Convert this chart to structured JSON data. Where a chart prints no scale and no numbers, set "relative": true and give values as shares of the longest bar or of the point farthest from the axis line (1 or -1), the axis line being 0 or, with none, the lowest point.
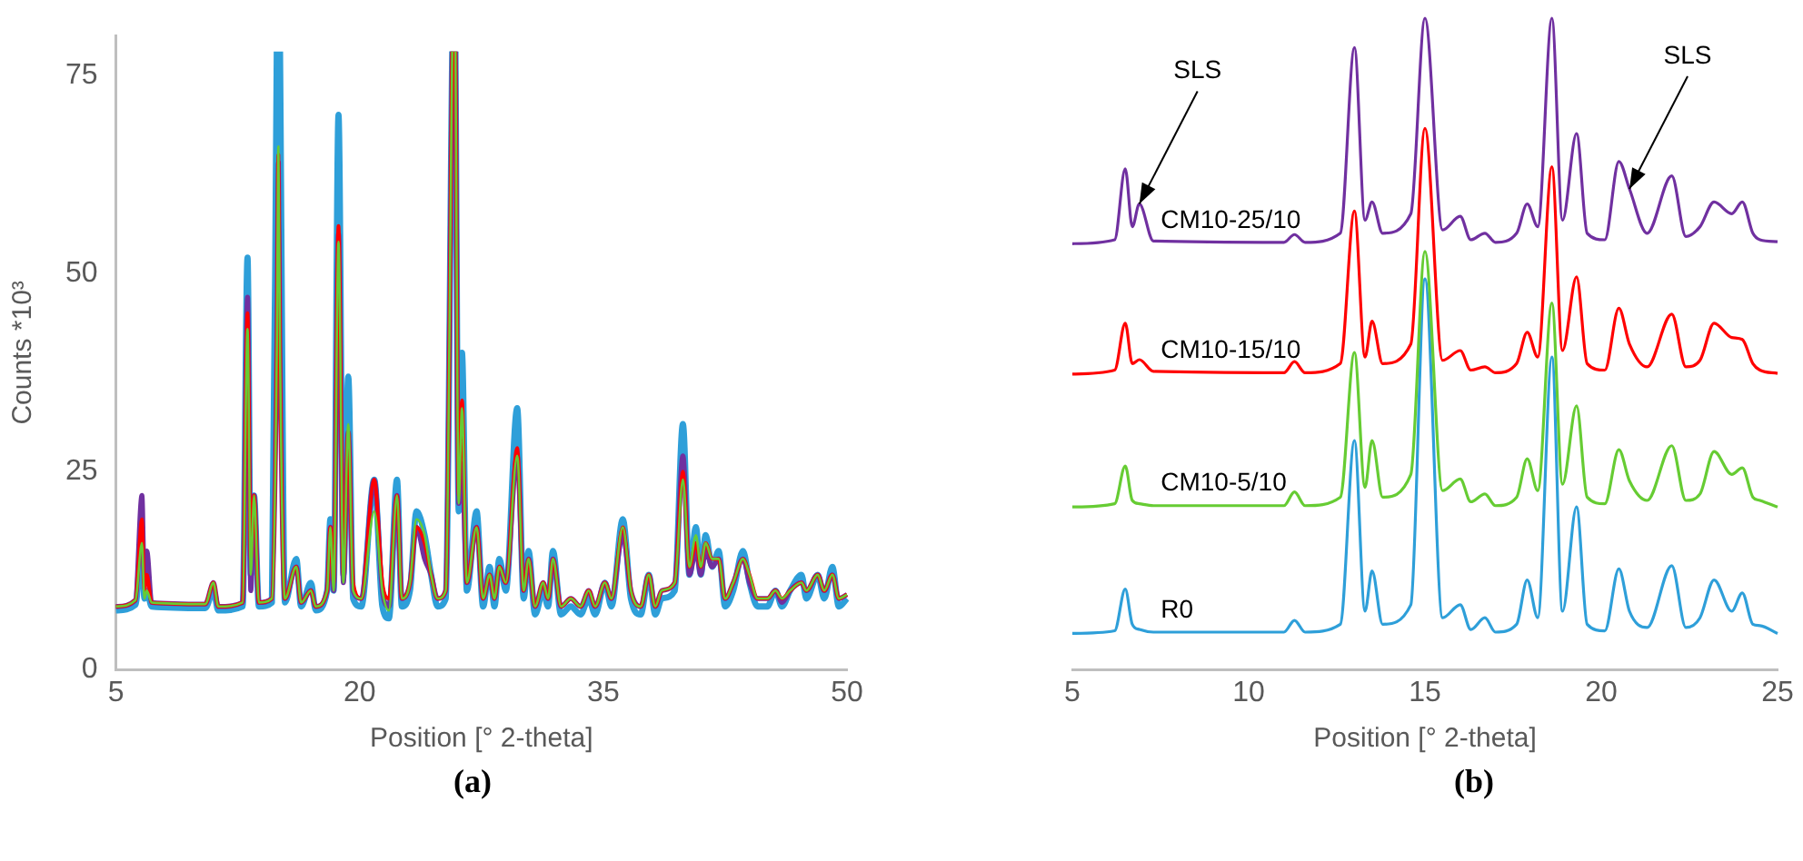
{
  "chart_data": [
    {
      "type": "line",
      "xlabel": "Position [° 2-theta]",
      "ylabel": "Counts *10³",
      "annotations": [
        "(a)"
      ],
      "xlim": [
        5,
        50
      ],
      "xticks": [
        5,
        20,
        35,
        50
      ],
      "ylim": [
        0,
        80
      ],
      "yticks": [
        0,
        25,
        50,
        75
      ],
      "grid": false,
      "legend": false,
      "marker": "none",
      "line_style": "solid",
      "x": [
        5,
        6.2,
        6.6,
        6.75,
        6.9,
        7.2,
        10.5,
        11,
        11.3,
        12.8,
        13.1,
        13.3,
        13.5,
        13.8,
        14.6,
        14.9,
        15,
        15.1,
        15.4,
        16.1,
        16.4,
        17,
        17.3,
        18,
        18.2,
        18.4,
        18.7,
        19,
        19.3,
        19.6,
        20.1,
        20.9,
        21.4,
        21.8,
        22.3,
        22.6,
        23.1,
        23.5,
        24,
        24.4,
        24.8,
        25.3,
        25.7,
        25.8,
        25.9,
        26.1,
        26.3,
        26.6,
        27.2,
        27.6,
        28,
        28.3,
        28.6,
        29,
        29.7,
        30.1,
        30.4,
        30.8,
        31.3,
        31.6,
        31.9,
        32.4,
        33,
        33.6,
        34.1,
        34.5,
        35.1,
        35.5,
        36.2,
        36.7,
        37.3,
        37.8,
        38.2,
        38.6,
        39.4,
        39.9,
        40.3,
        40.7,
        41,
        41.3,
        41.7,
        42.1,
        42.5,
        43,
        43.6,
        44,
        44.5,
        45.1,
        45.6,
        46,
        46.5,
        47.2,
        47.5,
        48.2,
        48.6,
        49.1,
        49.5,
        50
      ],
      "series": [
        {
          "color": "#2e9fd9",
          "values": [
            7.5,
            8.2,
            16,
            9,
            10,
            8,
            7.8,
            10,
            7.5,
            8,
            52,
            12,
            22,
            8,
            8.5,
            78,
            null,
            78,
            8.5,
            14,
            8,
            11,
            7.5,
            10,
            19,
            10,
            70,
            12,
            37,
            9,
            8,
            24,
            8,
            6.5,
            24,
            8,
            10,
            20,
            17,
            12,
            8,
            9,
            78,
            null,
            78,
            20,
            40,
            10,
            20,
            8,
            13,
            8,
            14,
            10,
            33,
            9,
            15,
            7,
            10,
            8,
            15,
            7,
            8,
            7,
            9,
            7,
            11,
            8,
            19,
            9,
            7,
            12,
            7,
            9,
            10,
            31,
            12,
            18,
            12,
            17,
            13,
            15,
            8,
            10,
            15,
            11,
            8,
            8,
            10,
            8,
            10,
            12,
            9,
            12,
            9,
            13,
            8,
            9
          ]
        },
        {
          "color": "#7030a0",
          "values": [
            8,
            8.8,
            22,
            11,
            15,
            8.5,
            8.3,
            11,
            8,
            8.5,
            47,
            10,
            22,
            8.5,
            9,
            40,
            64,
            40,
            9,
            13,
            8.5,
            10,
            8,
            10,
            18,
            10,
            55,
            11,
            30,
            10,
            9,
            24,
            10,
            8,
            22,
            9,
            11,
            18,
            14,
            12,
            9,
            10,
            78,
            null,
            78,
            21,
            26,
            11,
            18,
            9,
            12,
            9,
            13,
            11,
            27,
            10,
            14,
            8,
            11,
            9,
            14,
            8,
            9,
            8,
            10,
            8,
            11,
            9,
            17,
            10,
            8,
            12,
            8,
            10,
            11,
            27,
            12,
            15,
            12,
            15,
            13,
            14,
            9,
            11,
            14,
            11,
            9,
            9,
            10,
            8.5,
            10,
            11,
            10,
            12,
            10,
            12,
            9,
            9.5
          ]
        },
        {
          "color": "#ff0000",
          "values": [
            8,
            8.8,
            19,
            10,
            12,
            8.5,
            8.3,
            11,
            8,
            8.5,
            45,
            14,
            22,
            8.5,
            9,
            40,
            65,
            40,
            9,
            13,
            8.5,
            10,
            8,
            10,
            18,
            11,
            56,
            12,
            30,
            11,
            9,
            24,
            11,
            9,
            22,
            9,
            11,
            18,
            16,
            12,
            9,
            10,
            78,
            null,
            78,
            22,
            34,
            11,
            18,
            9,
            12,
            9,
            13,
            11,
            28,
            10,
            14,
            8,
            11,
            9,
            14,
            8,
            9,
            8,
            10,
            8,
            11,
            9,
            18,
            10,
            8,
            12,
            8,
            10,
            11,
            25,
            13,
            16,
            13,
            16,
            14,
            14,
            9,
            11,
            14,
            12,
            9,
            9,
            10,
            9,
            10,
            11,
            10,
            12,
            10,
            12,
            9,
            9.5
          ]
        },
        {
          "color": "#66cc33",
          "values": [
            8,
            8.8,
            16,
            9,
            10,
            8.5,
            8.3,
            11,
            8,
            8.5,
            43,
            12,
            22,
            8.5,
            9,
            40,
            66,
            40,
            9,
            13,
            8.5,
            10,
            8,
            10,
            18,
            10,
            54,
            11,
            31,
            10,
            9,
            20,
            10,
            7.5,
            22,
            9,
            11,
            19,
            17,
            12,
            9,
            10,
            78,
            null,
            78,
            21,
            33,
            11,
            18,
            9,
            12,
            9,
            13,
            11,
            27,
            10,
            14,
            8,
            11,
            9,
            14,
            8,
            9,
            8,
            10,
            8,
            11,
            9,
            18,
            10,
            8,
            12,
            8,
            10,
            11,
            24,
            13,
            17,
            13,
            16,
            14,
            14,
            9,
            11,
            14,
            12,
            9,
            9,
            10,
            9,
            10,
            11,
            10,
            12,
            10,
            12,
            9,
            9.5
          ]
        }
      ]
    },
    {
      "type": "line",
      "xlabel": "Position [° 2-theta]",
      "annotations": [
        "(b)",
        {
          "text": "SLS",
          "x": 6.9,
          "y": 0.715
        },
        {
          "text": "SLS",
          "x": 20.8,
          "y": 0.738
        }
      ],
      "relative": true,
      "xlim": [
        5,
        25
      ],
      "xticks": [
        5,
        10,
        15,
        20,
        25
      ],
      "grid": false,
      "legend": false,
      "marker": "none",
      "line_style": "solid",
      "x": [
        5,
        6.2,
        6.5,
        6.7,
        6.9,
        7.3,
        11,
        11.3,
        11.6,
        12.6,
        13,
        13.3,
        13.5,
        13.8,
        14.6,
        15,
        15.5,
        16,
        16.3,
        16.7,
        17,
        17.6,
        17.9,
        18.2,
        18.6,
        18.9,
        19.3,
        19.6,
        20.1,
        20.5,
        20.8,
        21.3,
        22,
        22.4,
        22.8,
        23.2,
        23.7,
        24,
        24.3,
        24.5,
        25
      ],
      "series": [
        {
          "name": "R0",
          "color": "#2e9fd9",
          "values": [
            0.056,
            0.06,
            0.124,
            0.07,
            0.062,
            0.058,
            0.058,
            0.076,
            0.058,
            0.07,
            0.352,
            0.09,
            0.152,
            0.07,
            0.1,
            0.6,
            0.08,
            0.1,
            0.062,
            0.08,
            0.058,
            0.07,
            0.138,
            0.08,
            0.48,
            0.09,
            0.25,
            0.07,
            0.06,
            0.155,
            0.09,
            0.065,
            0.16,
            0.065,
            0.08,
            0.138,
            0.09,
            0.118,
            0.07,
            0.068,
            0.056
          ]
        },
        {
          "name": "CM10-5/10",
          "color": "#66cc33",
          "values": [
            0.25,
            0.255,
            0.313,
            0.26,
            0.255,
            0.252,
            0.252,
            0.273,
            0.252,
            0.265,
            0.487,
            0.28,
            0.352,
            0.265,
            0.3,
            0.642,
            0.275,
            0.293,
            0.258,
            0.27,
            0.252,
            0.265,
            0.324,
            0.275,
            0.563,
            0.285,
            0.405,
            0.265,
            0.255,
            0.338,
            0.29,
            0.26,
            0.344,
            0.26,
            0.27,
            0.335,
            0.3,
            0.31,
            0.265,
            0.26,
            0.25
          ]
        },
        {
          "name": "CM10-15/10",
          "color": "#ff0000",
          "values": [
            0.454,
            0.46,
            0.532,
            0.47,
            0.476,
            0.458,
            0.456,
            0.473,
            0.456,
            0.47,
            0.704,
            0.48,
            0.535,
            0.47,
            0.5,
            0.831,
            0.475,
            0.49,
            0.46,
            0.465,
            0.456,
            0.47,
            0.518,
            0.48,
            0.772,
            0.49,
            0.603,
            0.47,
            0.46,
            0.555,
            0.5,
            0.465,
            0.546,
            0.465,
            0.475,
            0.532,
            0.51,
            0.507,
            0.47,
            0.46,
            0.455
          ]
        },
        {
          "name": "CM10-25/10",
          "color": "#7030a0",
          "values": [
            0.654,
            0.66,
            0.769,
            0.68,
            0.715,
            0.658,
            0.656,
            0.668,
            0.656,
            0.67,
            0.955,
            0.69,
            0.718,
            0.67,
            0.7,
            1,
            0.675,
            0.696,
            0.66,
            0.67,
            0.656,
            0.67,
            0.715,
            0.68,
            1,
            0.69,
            0.823,
            0.67,
            0.66,
            0.78,
            0.738,
            0.67,
            0.758,
            0.665,
            0.68,
            0.718,
            0.7,
            0.718,
            0.67,
            0.66,
            0.657
          ]
        }
      ]
    }
  ]
}
